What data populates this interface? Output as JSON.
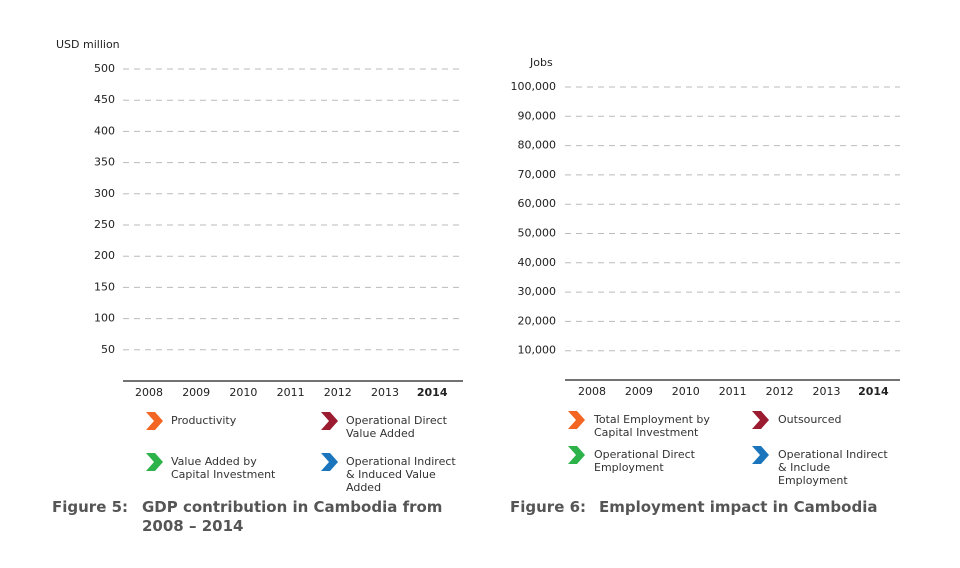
{
  "chart_data": [
    {
      "type": "bar",
      "y_label": "USD million",
      "categories": [
        "2008",
        "2009",
        "2010",
        "2011",
        "2012",
        "2013",
        "2014"
      ],
      "ylim": [
        0,
        500
      ],
      "yticks": [
        50,
        100,
        150,
        200,
        250,
        300,
        350,
        400,
        450,
        500
      ],
      "grid": true,
      "series": [
        {
          "name": "Productivity",
          "color": "#f26522"
        },
        {
          "name": "Operational Direct Value Added",
          "color": "#9b1b30"
        },
        {
          "name": "Value Added by Capital Investment",
          "color": "#2db34a"
        },
        {
          "name": "Operational Indirect & Induced Value Added",
          "color": "#1a75bc"
        }
      ],
      "figure_label": "Figure 5:",
      "title": "GDP contribution in Cambodia from 2008 – 2014"
    },
    {
      "type": "bar",
      "y_label": "Jobs",
      "categories": [
        "2008",
        "2009",
        "2010",
        "2011",
        "2012",
        "2013",
        "2014"
      ],
      "ylim": [
        0,
        100000
      ],
      "yticks": [
        {
          "value": 10000,
          "label": "10,000"
        },
        {
          "value": 20000,
          "label": "20,000"
        },
        {
          "value": 30000,
          "label": "30,000"
        },
        {
          "value": 40000,
          "label": "40,000"
        },
        {
          "value": 50000,
          "label": "50,000"
        },
        {
          "value": 60000,
          "label": "60,000"
        },
        {
          "value": 70000,
          "label": "70,000"
        },
        {
          "value": 80000,
          "label": "80,000"
        },
        {
          "value": 90000,
          "label": "90,000"
        },
        {
          "value": 100000,
          "label": "100,000"
        }
      ],
      "grid": true,
      "series": [
        {
          "name": "Total Employment by Capital Investment",
          "color": "#f26522"
        },
        {
          "name": "Outsourced",
          "color": "#9b1b30"
        },
        {
          "name": "Operational Direct Employment",
          "color": "#2db34a"
        },
        {
          "name": "Operational Indirect & Include Employment",
          "color": "#1a75bc"
        }
      ],
      "figure_label": "Figure 6:",
      "title": "Employment impact in Cambodia"
    }
  ]
}
